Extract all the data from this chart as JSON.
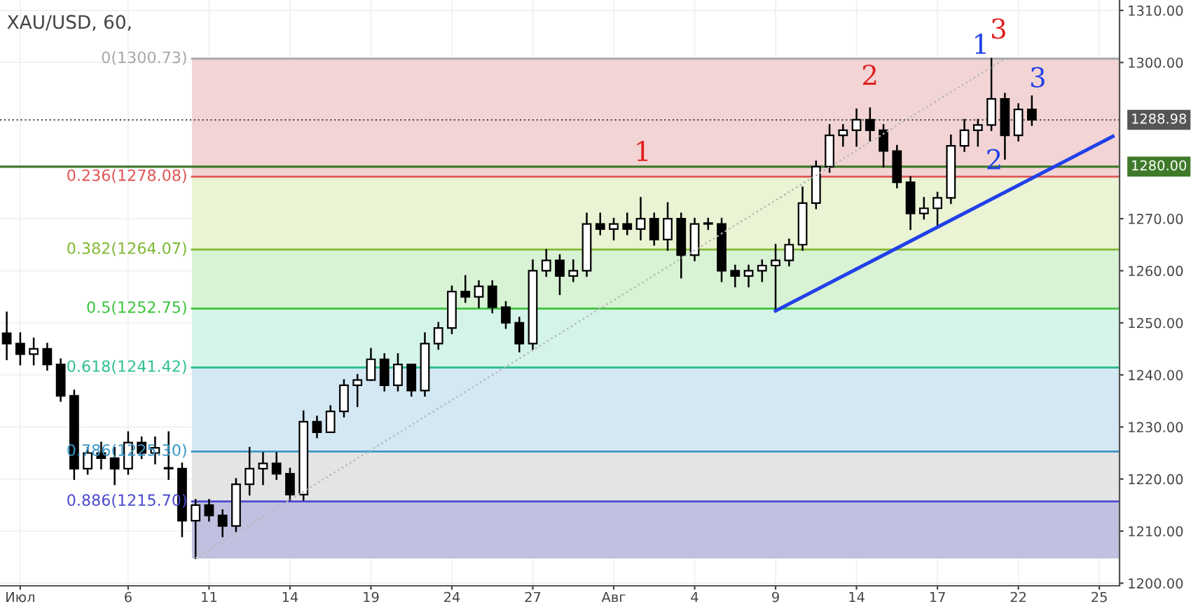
{
  "chart_data": {
    "type": "candlestick",
    "title": "XAU/USD, 60,",
    "color": "#000000",
    "categories": [
      null,
      "Июл",
      null,
      null,
      null,
      null,
      null,
      null,
      null,
      "6",
      null,
      null,
      null,
      null,
      null,
      "11",
      null,
      null,
      null,
      null,
      null,
      "14",
      null,
      null,
      null,
      null,
      null,
      "19",
      null,
      null,
      null,
      null,
      null,
      "24",
      null,
      null,
      null,
      null,
      null,
      "27",
      null,
      null,
      null,
      null,
      null,
      "Авг",
      null,
      null,
      null,
      null,
      null,
      "4",
      null,
      null,
      null,
      null,
      null,
      "9",
      null,
      null,
      null,
      null,
      null,
      "14",
      null,
      null,
      null,
      null,
      null,
      "17",
      null,
      null,
      null,
      null,
      null,
      "22",
      null,
      null,
      null,
      null,
      null,
      "25",
      null
    ],
    "ohlc": [
      [
        1248,
        1252,
        1243,
        1246
      ],
      [
        1246,
        1248,
        1242,
        1244
      ],
      [
        1244,
        1247,
        1242,
        1245
      ],
      [
        1245,
        1246,
        1241,
        1242
      ],
      [
        1242,
        1243,
        1235,
        1236
      ],
      [
        1236,
        1237,
        1220,
        1222
      ],
      [
        1222,
        1226,
        1221,
        1225
      ],
      [
        1225,
        1227,
        1222,
        1224
      ],
      [
        1224,
        1226,
        1219,
        1222
      ],
      [
        1222,
        1229,
        1221,
        1227
      ],
      [
        1227,
        1228,
        1224,
        1225
      ],
      [
        1225,
        1228,
        1223,
        1226
      ],
      [
        1222,
        1229,
        1220,
        1222
      ],
      [
        1222,
        1223,
        1209,
        1212
      ],
      [
        1212,
        1216,
        1204.8,
        1215
      ],
      [
        1215,
        1216,
        1212,
        1213
      ],
      [
        1213,
        1214,
        1209,
        1211
      ],
      [
        1211,
        1220,
        1210,
        1219
      ],
      [
        1219,
        1226,
        1217,
        1222
      ],
      [
        1222,
        1225,
        1219,
        1223
      ],
      [
        1223,
        1225,
        1220,
        1221
      ],
      [
        1221,
        1222,
        1216,
        1217
      ],
      [
        1217,
        1233,
        1216,
        1231
      ],
      [
        1231,
        1232,
        1228,
        1229
      ],
      [
        1229,
        1234,
        1229,
        1233
      ],
      [
        1233,
        1239,
        1232,
        1238
      ],
      [
        1238,
        1240,
        1234,
        1239
      ],
      [
        1239,
        1245,
        1239,
        1243
      ],
      [
        1243,
        1244,
        1237,
        1238
      ],
      [
        1238,
        1244,
        1237,
        1242
      ],
      [
        1242,
        1242,
        1236,
        1237
      ],
      [
        1237,
        1248,
        1236,
        1246
      ],
      [
        1246,
        1250,
        1245,
        1249
      ],
      [
        1249,
        1257,
        1248,
        1256
      ],
      [
        1256,
        1259,
        1254,
        1255
      ],
      [
        1255,
        1258,
        1253,
        1257
      ],
      [
        1257,
        1258,
        1252,
        1253
      ],
      [
        1253,
        1254,
        1249,
        1250
      ],
      [
        1250,
        1251,
        1244.5,
        1246
      ],
      [
        1246,
        1262,
        1245,
        1260
      ],
      [
        1260,
        1264,
        1259,
        1262
      ],
      [
        1262,
        1263,
        1255.5,
        1259
      ],
      [
        1259,
        1262,
        1258,
        1260
      ],
      [
        1260,
        1271,
        1259,
        1269
      ],
      [
        1269,
        1271,
        1267,
        1268
      ],
      [
        1268,
        1270,
        1266,
        1269
      ],
      [
        1269,
        1271,
        1267,
        1268
      ],
      [
        1268,
        1274,
        1266,
        1270
      ],
      [
        1270,
        1271,
        1265,
        1266
      ],
      [
        1266,
        1273,
        1264,
        1270
      ],
      [
        1270,
        1271,
        1258.7,
        1263
      ],
      [
        1263,
        1270,
        1262,
        1269
      ],
      [
        1269,
        1270,
        1268,
        1269
      ],
      [
        1269,
        1270,
        1258,
        1260
      ],
      [
        1260,
        1261,
        1257,
        1259
      ],
      [
        1259,
        1261,
        1257,
        1260
      ],
      [
        1260,
        1262,
        1258,
        1261
      ],
      [
        1261,
        1265,
        1252.3,
        1262
      ],
      [
        1262,
        1266,
        1261,
        1265
      ],
      [
        1265,
        1276,
        1264,
        1273
      ],
      [
        1273,
        1281,
        1272,
        1280
      ],
      [
        1280,
        1288,
        1279,
        1286
      ],
      [
        1286,
        1288,
        1284,
        1287
      ],
      [
        1287,
        1291,
        1284,
        1289
      ],
      [
        1289,
        1291.2,
        1285,
        1287
      ],
      [
        1287,
        1288,
        1280,
        1283
      ],
      [
        1283,
        1284,
        1276,
        1277
      ],
      [
        1277,
        1278,
        1268,
        1271
      ],
      [
        1271,
        1274,
        1270,
        1272
      ],
      [
        1272,
        1275,
        1268.3,
        1274
      ],
      [
        1274,
        1286,
        1273,
        1284
      ],
      [
        1284,
        1289,
        1283,
        1287
      ],
      [
        1287,
        1289,
        1284,
        1288
      ],
      [
        1288,
        1300.7,
        1287,
        1293
      ],
      [
        1293,
        1294,
        1281.5,
        1286
      ],
      [
        1286,
        1292,
        1285,
        1291
      ],
      [
        1291,
        1293.5,
        1288,
        1289
      ],
      null,
      null,
      null,
      null,
      null,
      null
    ],
    "series": [
      {
        "type": "line",
        "color": "#2040e8",
        "line_style": "solid",
        "values": [
          null,
          null,
          null,
          null,
          null,
          null,
          null,
          null,
          null,
          null,
          null,
          null,
          null,
          null,
          null,
          null,
          null,
          null,
          null,
          null,
          null,
          null,
          null,
          null,
          null,
          null,
          null,
          null,
          null,
          null,
          null,
          null,
          null,
          null,
          null,
          null,
          null,
          null,
          null,
          null,
          null,
          null,
          null,
          null,
          null,
          null,
          null,
          null,
          null,
          null,
          null,
          null,
          null,
          null,
          null,
          null,
          null,
          1252.3,
          null,
          null,
          null,
          null,
          null,
          null,
          null,
          null,
          null,
          null,
          null,
          null,
          null,
          null,
          null,
          null,
          null,
          null,
          null,
          null,
          null,
          null,
          null,
          null,
          1285.8
        ]
      },
      {
        "type": "line",
        "color": "#b8b8b8",
        "line_style": "dotted",
        "values": [
          null,
          null,
          null,
          null,
          null,
          null,
          null,
          null,
          null,
          null,
          null,
          null,
          null,
          null,
          1204.8,
          null,
          null,
          null,
          null,
          null,
          null,
          null,
          null,
          null,
          null,
          null,
          null,
          null,
          null,
          null,
          null,
          null,
          null,
          null,
          null,
          null,
          null,
          null,
          null,
          null,
          null,
          null,
          null,
          null,
          null,
          null,
          null,
          null,
          null,
          null,
          null,
          null,
          null,
          null,
          null,
          null,
          null,
          null,
          null,
          null,
          null,
          null,
          null,
          null,
          null,
          null,
          null,
          null,
          null,
          null,
          null,
          null,
          null,
          null,
          1300.7,
          null,
          null,
          null,
          null,
          null,
          null,
          null,
          null
        ]
      }
    ],
    "ylim": [
      1199.5,
      1312
    ],
    "yticks": [
      {
        "value": 1200,
        "label": "1200.00"
      },
      {
        "value": 1210,
        "label": "1210.00"
      },
      {
        "value": 1220,
        "label": "1220.00"
      },
      {
        "value": 1230,
        "label": "1230.00"
      },
      {
        "value": 1240,
        "label": "1240.00"
      },
      {
        "value": 1250,
        "label": "1250.00"
      },
      {
        "value": 1260,
        "label": "1260.00"
      },
      {
        "value": 1270,
        "label": "1270.00"
      },
      {
        "value": 1300,
        "label": "1300.00"
      },
      {
        "value": 1310,
        "label": "1310.00"
      }
    ],
    "grid": true,
    "bands": [
      {
        "axis": "y",
        "from": 1278.08,
        "to": 1300.73,
        "color": "#f2d4d4"
      },
      {
        "axis": "y",
        "from": 1264.07,
        "to": 1278.08,
        "color": "#eaf3d3"
      },
      {
        "axis": "y",
        "from": 1252.75,
        "to": 1264.07,
        "color": "#d8f2d4"
      },
      {
        "axis": "y",
        "from": 1241.42,
        "to": 1252.75,
        "color": "#d4f4e8"
      },
      {
        "axis": "y",
        "from": 1225.3,
        "to": 1241.42,
        "color": "#d4e8f4"
      },
      {
        "axis": "y",
        "from": 1215.7,
        "to": 1225.3,
        "color": "#e4e4e4"
      },
      {
        "axis": "y",
        "from": 1204.76,
        "to": 1215.7,
        "color": "#c0c0e0"
      }
    ],
    "ref_lines": [
      {
        "axis": "y",
        "value": 1300.73,
        "label": "0(1300.73)",
        "color": "#a8a8a8",
        "line_style": "solid"
      },
      {
        "axis": "y",
        "value": 1278.08,
        "label": "0.236(1278.08)",
        "color": "#e05555",
        "line_style": "solid"
      },
      {
        "axis": "y",
        "value": 1264.07,
        "label": "0.382(1264.07)",
        "color": "#7fb833",
        "line_style": "solid"
      },
      {
        "axis": "y",
        "value": 1252.75,
        "label": "0.5(1252.75)",
        "color": "#3cc43c",
        "line_style": "solid"
      },
      {
        "axis": "y",
        "value": 1241.42,
        "label": "0.618(1241.42)",
        "color": "#2fbf8f",
        "line_style": "solid"
      },
      {
        "axis": "y",
        "value": 1225.3,
        "label": "0.786(1225.30)",
        "color": "#3a98c8",
        "line_style": "solid"
      },
      {
        "axis": "y",
        "value": 1215.7,
        "label": "0.886(1215.70)",
        "color": "#4a4ad0",
        "line_style": "solid"
      },
      {
        "axis": "y",
        "value": 1288.98,
        "label": "1288.98",
        "color": "#555555",
        "line_style": "dotted"
      },
      {
        "axis": "y",
        "value": 1280.0,
        "label": "1280.00",
        "color": "#3f7a2a",
        "line_style": "solid"
      }
    ],
    "annotations": [
      "1",
      "2",
      "3",
      "1",
      "3",
      "2"
    ]
  }
}
